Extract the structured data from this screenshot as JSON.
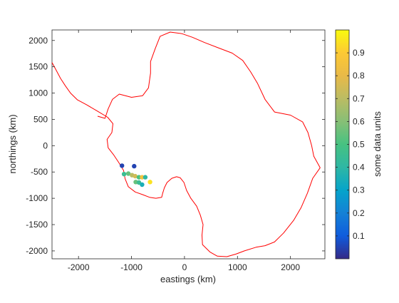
{
  "chart_data": {
    "type": "scatter",
    "xlabel": "eastings (km)",
    "ylabel": "northings (km)",
    "xlim": [
      -2500,
      2650
    ],
    "ylim": [
      -2150,
      2200
    ],
    "xticks": [
      -2000,
      -1000,
      0,
      1000,
      2000
    ],
    "xtick_labels": [
      "-2000",
      "-1000",
      "0",
      "1000",
      "2000"
    ],
    "yticks": [
      -2000,
      -1500,
      -1000,
      -500,
      0,
      500,
      1000,
      1500,
      2000
    ],
    "ytick_labels": [
      "-2000",
      "-1500",
      "-1000",
      "-500",
      "0",
      "500",
      "1000",
      "1500",
      "2000"
    ],
    "coastline_color": "#ff0000",
    "coastline_approx": [
      [
        -2500,
        1580
      ],
      [
        -2430,
        1450
      ],
      [
        -2340,
        1280
      ],
      [
        -2250,
        1140
      ],
      [
        -2150,
        1000
      ],
      [
        -2020,
        870
      ],
      [
        -1850,
        780
      ],
      [
        -1650,
        660
      ],
      [
        -1450,
        540
      ],
      [
        -1350,
        420
      ],
      [
        -1370,
        250
      ],
      [
        -1460,
        120
      ],
      [
        -1440,
        -40
      ],
      [
        -1340,
        -170
      ],
      [
        -1240,
        -320
      ],
      [
        -1150,
        -470
      ],
      [
        -1120,
        -630
      ],
      [
        -1060,
        -780
      ],
      [
        -930,
        -880
      ],
      [
        -790,
        -930
      ],
      [
        -660,
        -980
      ],
      [
        -540,
        -1000
      ],
      [
        -430,
        -980
      ],
      [
        -410,
        -900
      ],
      [
        -380,
        -800
      ],
      [
        -330,
        -700
      ],
      [
        -240,
        -620
      ],
      [
        -150,
        -590
      ],
      [
        -80,
        -610
      ],
      [
        -10,
        -700
      ],
      [
        40,
        -850
      ],
      [
        120,
        -1000
      ],
      [
        230,
        -1150
      ],
      [
        300,
        -1320
      ],
      [
        350,
        -1500
      ],
      [
        330,
        -1700
      ],
      [
        340,
        -1880
      ],
      [
        480,
        -2020
      ],
      [
        620,
        -2100
      ],
      [
        800,
        -2110
      ],
      [
        970,
        -2060
      ],
      [
        1130,
        -2000
      ],
      [
        1350,
        -1930
      ],
      [
        1520,
        -1900
      ],
      [
        1700,
        -1830
      ],
      [
        1870,
        -1660
      ],
      [
        2060,
        -1420
      ],
      [
        2200,
        -1180
      ],
      [
        2320,
        -900
      ],
      [
        2420,
        -620
      ],
      [
        2560,
        -420
      ],
      [
        2440,
        -200
      ],
      [
        2400,
        0
      ],
      [
        2330,
        250
      ],
      [
        2230,
        450
      ],
      [
        2000,
        580
      ],
      [
        1700,
        640
      ],
      [
        1520,
        880
      ],
      [
        1380,
        1180
      ],
      [
        1250,
        1400
      ],
      [
        1100,
        1620
      ],
      [
        900,
        1760
      ],
      [
        640,
        1860
      ],
      [
        380,
        1960
      ],
      [
        150,
        2060
      ],
      [
        -50,
        2130
      ],
      [
        -270,
        2160
      ],
      [
        -460,
        2080
      ],
      [
        -550,
        1850
      ],
      [
        -640,
        1600
      ],
      [
        -640,
        1380
      ],
      [
        -680,
        1100
      ],
      [
        -790,
        950
      ],
      [
        -1000,
        920
      ],
      [
        -1230,
        980
      ],
      [
        -1360,
        880
      ],
      [
        -1440,
        700
      ],
      [
        -1500,
        520
      ],
      [
        -1640,
        560
      ]
    ],
    "points": [
      {
        "x": -1180,
        "y": -380,
        "value": 0.05
      },
      {
        "x": -950,
        "y": -390,
        "value": 0.05
      },
      {
        "x": -1140,
        "y": -540,
        "value": 0.45
      },
      {
        "x": -1060,
        "y": -530,
        "value": 0.55
      },
      {
        "x": -990,
        "y": -560,
        "value": 0.7
      },
      {
        "x": -930,
        "y": -580,
        "value": 0.75
      },
      {
        "x": -860,
        "y": -600,
        "value": 0.5
      },
      {
        "x": -800,
        "y": -600,
        "value": 0.85
      },
      {
        "x": -740,
        "y": -600,
        "value": 0.4
      },
      {
        "x": -920,
        "y": -690,
        "value": 0.55
      },
      {
        "x": -860,
        "y": -700,
        "value": 0.45
      },
      {
        "x": -800,
        "y": -740,
        "value": 0.35
      },
      {
        "x": -650,
        "y": -690,
        "value": 0.95
      }
    ],
    "colorbar": {
      "label": "some data units",
      "range": [
        0,
        1
      ],
      "ticks": [
        0.1,
        0.2,
        0.3,
        0.4,
        0.5,
        0.6,
        0.7,
        0.8,
        0.9
      ],
      "tick_labels": [
        "0.1",
        "0.2",
        "0.3",
        "0.4",
        "0.5",
        "0.6",
        "0.7",
        "0.8",
        "0.9"
      ],
      "colormap": "parula"
    }
  }
}
